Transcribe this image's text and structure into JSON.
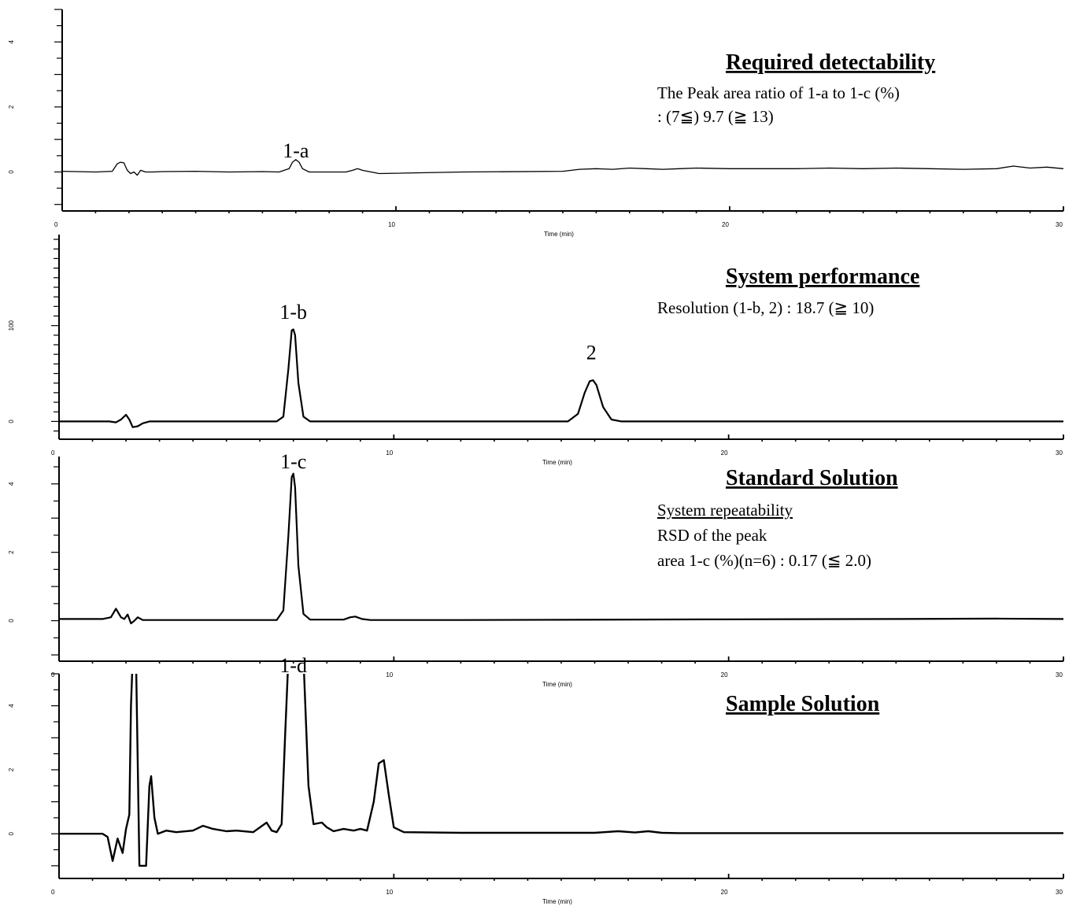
{
  "chart_data": [
    {
      "type": "line",
      "xlabel": "Time (min)",
      "xlim": [
        0,
        30
      ],
      "ylim": [
        -1.2,
        5
      ],
      "x_ticks": [
        "0",
        "10",
        "20",
        "30"
      ],
      "y_ticks": [
        {
          "value": 0,
          "label": "0"
        },
        {
          "value": 2,
          "label": "2"
        },
        {
          "value": 4,
          "label": "4"
        }
      ],
      "peak_labels": [
        {
          "text": "1-a",
          "x": 7.0,
          "y": 0.45
        }
      ],
      "notes": {
        "title": "Required detectability",
        "lines": [
          {
            "text": "The Peak area ratio of 1-a to 1-c (%)",
            "underline": false
          },
          {
            "text": ": (7≦) 9.7 (≧ 13)",
            "underline": false
          }
        ]
      },
      "series": [
        {
          "x": [
            0,
            1.0,
            1.5,
            1.65,
            1.75,
            1.85,
            1.95,
            2.05,
            2.15,
            2.25,
            2.35,
            2.5,
            2.7,
            3,
            4,
            5,
            6,
            6.5,
            6.8,
            6.9,
            7.0,
            7.1,
            7.2,
            7.4,
            7.8,
            8.5,
            8.7,
            8.85,
            9.0,
            9.5,
            12,
            15,
            15.5,
            16,
            16.5,
            17,
            17.5,
            18,
            18.5,
            19,
            20,
            22,
            23,
            24,
            25,
            26,
            27,
            28,
            28.5,
            29,
            29.5,
            30
          ],
          "y": [
            0.02,
            0.0,
            0.02,
            0.25,
            0.3,
            0.28,
            0.05,
            -0.05,
            0.0,
            -0.1,
            0.05,
            0.0,
            0.0,
            0.01,
            0.02,
            0.0,
            0.01,
            0.0,
            0.1,
            0.3,
            0.38,
            0.3,
            0.1,
            0.0,
            0.0,
            0.0,
            0.05,
            0.1,
            0.05,
            -0.05,
            0.0,
            0.02,
            0.08,
            0.1,
            0.08,
            0.12,
            0.1,
            0.08,
            0.1,
            0.12,
            0.1,
            0.1,
            0.12,
            0.1,
            0.12,
            0.1,
            0.08,
            0.1,
            0.18,
            0.12,
            0.15,
            0.1
          ]
        }
      ]
    },
    {
      "type": "line",
      "xlabel": "Time (min)",
      "xlim": [
        0,
        30
      ],
      "ylim": [
        -12,
        195
      ],
      "x_ticks": [
        "0",
        "10",
        "20",
        "30"
      ],
      "y_ticks": [
        {
          "value": 0,
          "label": "0"
        },
        {
          "value": 100,
          "label": "100"
        }
      ],
      "peak_labels": [
        {
          "text": "1-b",
          "x": 7.0,
          "y": 107
        },
        {
          "text": "2",
          "x": 15.9,
          "y": 65
        }
      ],
      "notes": {
        "title": "System performance",
        "lines": [
          {
            "text": "Resolution (1-b, 2)  : 18.7 (≧ 10)",
            "underline": false
          }
        ]
      },
      "series": [
        {
          "x": [
            0,
            1.5,
            1.7,
            1.85,
            2.0,
            2.1,
            2.2,
            2.35,
            2.5,
            2.7,
            3,
            6.5,
            6.7,
            6.85,
            6.95,
            7.0,
            7.05,
            7.15,
            7.3,
            7.5,
            10,
            15.2,
            15.5,
            15.7,
            15.85,
            15.95,
            16.05,
            16.25,
            16.5,
            16.8,
            30
          ],
          "y": [
            0,
            0,
            -1,
            2,
            7,
            2,
            -6,
            -5,
            -2,
            0,
            0,
            0,
            5,
            55,
            95,
            96,
            90,
            40,
            5,
            0,
            0,
            0,
            8,
            30,
            42,
            43,
            38,
            15,
            2,
            0,
            0
          ]
        }
      ]
    },
    {
      "type": "line",
      "xlabel": "Time (min)",
      "xlim": [
        0,
        30
      ],
      "ylim": [
        -1,
        4.8
      ],
      "x_ticks": [
        "0",
        "10",
        "20",
        "30"
      ],
      "y_ticks": [
        {
          "value": 0,
          "label": "0"
        },
        {
          "value": 2,
          "label": "2"
        },
        {
          "value": 4,
          "label": "4"
        }
      ],
      "peak_labels": [
        {
          "text": "1-c",
          "x": 7.0,
          "y": 4.45
        }
      ],
      "notes": {
        "title": "Standard Solution",
        "lines": [
          {
            "text": "System repeatability",
            "underline": true
          },
          {
            "text": "RSD of the peak",
            "underline": false
          },
          {
            "text": "area 1-c (%)(n=6) : 0.17 (≦ 2.0)",
            "underline": false
          }
        ]
      },
      "series": [
        {
          "x": [
            0,
            1.3,
            1.55,
            1.7,
            1.85,
            1.95,
            2.05,
            2.15,
            2.25,
            2.35,
            2.5,
            2.7,
            3,
            6.5,
            6.7,
            6.85,
            6.95,
            7.0,
            7.05,
            7.15,
            7.3,
            7.5,
            8.5,
            8.7,
            8.85,
            9.05,
            9.3,
            12,
            20,
            25,
            28,
            30
          ],
          "y": [
            0.05,
            0.05,
            0.1,
            0.35,
            0.1,
            0.05,
            0.18,
            -0.08,
            0.0,
            0.1,
            0.02,
            0.02,
            0.02,
            0.02,
            0.3,
            2.5,
            4.2,
            4.3,
            3.9,
            1.6,
            0.2,
            0.03,
            0.03,
            0.1,
            0.12,
            0.05,
            0.02,
            0.02,
            0.04,
            0.05,
            0.06,
            0.05
          ]
        }
      ]
    },
    {
      "type": "line",
      "xlabel": "Time (min)",
      "xlim": [
        0,
        30
      ],
      "ylim": [
        -1.2,
        5
      ],
      "x_ticks": [
        "0",
        "10",
        "20",
        "30"
      ],
      "y_ticks": [
        {
          "value": 0,
          "label": "0"
        },
        {
          "value": 2,
          "label": "2"
        },
        {
          "value": 4,
          "label": "4"
        }
      ],
      "peak_labels": [
        {
          "text": "1-d",
          "x": 7.0,
          "y": 5.05
        }
      ],
      "notes": {
        "title": "Sample Solution",
        "lines": []
      },
      "series": [
        {
          "x": [
            0,
            1.3,
            1.45,
            1.6,
            1.75,
            1.9,
            2.0,
            2.1,
            2.15,
            2.2,
            2.3,
            2.4,
            2.5,
            2.6,
            2.7,
            2.75,
            2.85,
            2.95,
            3.2,
            3.5,
            4,
            4.3,
            4.6,
            5,
            5.3,
            5.8,
            6.2,
            6.35,
            6.5,
            6.65,
            6.75,
            6.85,
            6.95,
            7.0,
            7.2,
            7.3,
            7.45,
            7.6,
            7.85,
            8.0,
            8.2,
            8.5,
            8.8,
            9.0,
            9.2,
            9.4,
            9.55,
            9.7,
            9.85,
            10.0,
            10.3,
            12,
            16,
            16.7,
            17.2,
            17.6,
            18,
            18.5,
            20,
            25,
            30
          ],
          "y": [
            0,
            0,
            -0.1,
            -0.85,
            -0.15,
            -0.6,
            0.15,
            0.6,
            4.0,
            5.5,
            5.5,
            -1.0,
            -1.0,
            -1.0,
            1.5,
            1.8,
            0.5,
            0.0,
            0.1,
            0.05,
            0.1,
            0.25,
            0.15,
            0.08,
            0.1,
            0.05,
            0.35,
            0.1,
            0.05,
            0.3,
            3.0,
            5.5,
            5.5,
            5.5,
            5.5,
            5.5,
            1.5,
            0.3,
            0.35,
            0.2,
            0.08,
            0.15,
            0.1,
            0.15,
            0.1,
            1.0,
            2.2,
            2.3,
            1.2,
            0.2,
            0.05,
            0.03,
            0.03,
            0.08,
            0.04,
            0.08,
            0.03,
            0.02,
            0.02,
            0.02,
            0.02
          ]
        }
      ]
    }
  ]
}
